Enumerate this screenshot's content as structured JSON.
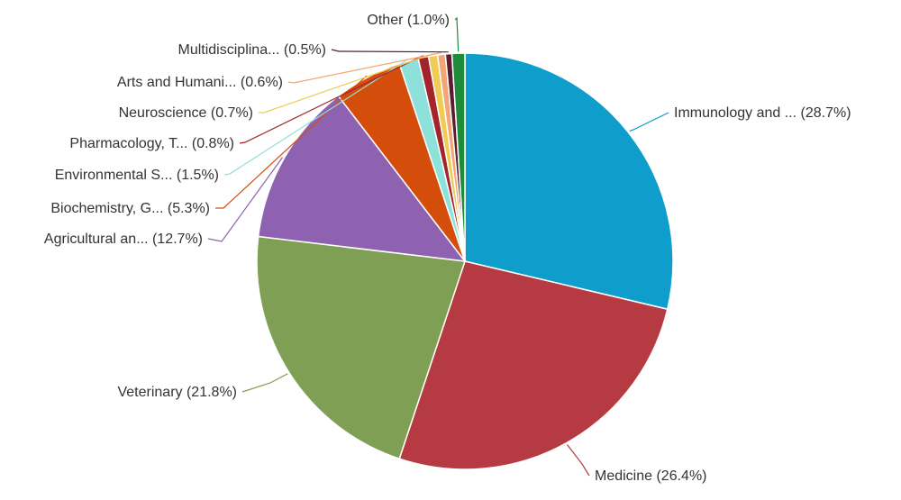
{
  "chart_data": {
    "type": "pie",
    "start_angle_deg": 0,
    "direction": "clockwise",
    "slices": [
      {
        "label": "Immunology and ... (28.7%)",
        "value": 28.7,
        "color": "#0f9dcc"
      },
      {
        "label": "Medicine (26.4%)",
        "value": 26.4,
        "color": "#b63a41"
      },
      {
        "label": "Veterinary (21.8%)",
        "value": 21.8,
        "color": "#7f9f55"
      },
      {
        "label": "Agricultural an... (12.7%)",
        "value": 12.7,
        "color": "#8f62b1"
      },
      {
        "label": "Biochemistry, G... (5.3%)",
        "value": 5.3,
        "color": "#d54d0a"
      },
      {
        "label": "Environmental S... (1.5%)",
        "value": 1.5,
        "color": "#8ee1da"
      },
      {
        "label": "Pharmacology, T... (0.8%)",
        "value": 0.8,
        "color": "#a2252b"
      },
      {
        "label": "Neuroscience (0.7%)",
        "value": 0.7,
        "color": "#f0cb55"
      },
      {
        "label": "Arts and Humani... (0.6%)",
        "value": 0.6,
        "color": "#f3a575"
      },
      {
        "label": "Multidisciplina... (0.5%)",
        "value": 0.5,
        "color": "#5a1c2e"
      },
      {
        "label": "Other (1.0%)",
        "value": 1.0,
        "color": "#1e8c3a"
      }
    ]
  }
}
